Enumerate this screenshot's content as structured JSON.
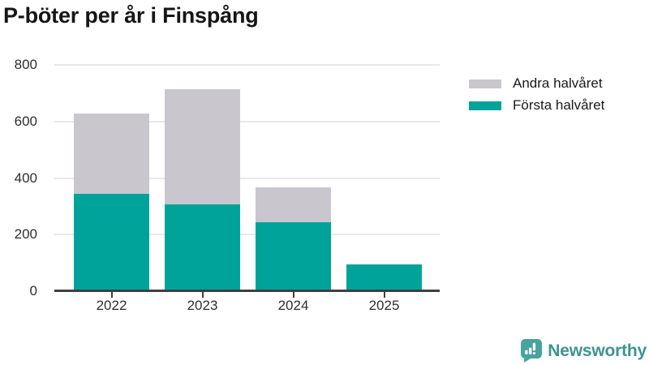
{
  "title": "P-böter per år i Finspång",
  "legend": {
    "items": [
      {
        "label": "Andra halvåret",
        "color": "#c9c6ce"
      },
      {
        "label": "Första halvåret",
        "color": "#00a39a"
      }
    ]
  },
  "chart_data": {
    "type": "bar",
    "stacked": true,
    "title": "P-böter per år i Finspång",
    "categories": [
      "2022",
      "2023",
      "2024",
      "2025"
    ],
    "series": [
      {
        "name": "Första halvåret",
        "color": "#00a39a",
        "values": [
          345,
          308,
          245,
          95
        ]
      },
      {
        "name": "Andra halvåret",
        "color": "#c9c6ce",
        "values": [
          282,
          407,
          123,
          0
        ]
      }
    ],
    "stack_totals": [
      627,
      715,
      368,
      95
    ],
    "xlabel": "",
    "ylabel": "",
    "ylim": [
      0,
      800
    ],
    "yticks": [
      0,
      200,
      400,
      600,
      800
    ],
    "grid": "horizontal",
    "legend_position": "top-right"
  },
  "branding": {
    "name": "Newsworthy",
    "icon": "newsworthy-chart-bubble-icon",
    "text_color": "#3d948e",
    "icon_color": "#48a39d"
  }
}
